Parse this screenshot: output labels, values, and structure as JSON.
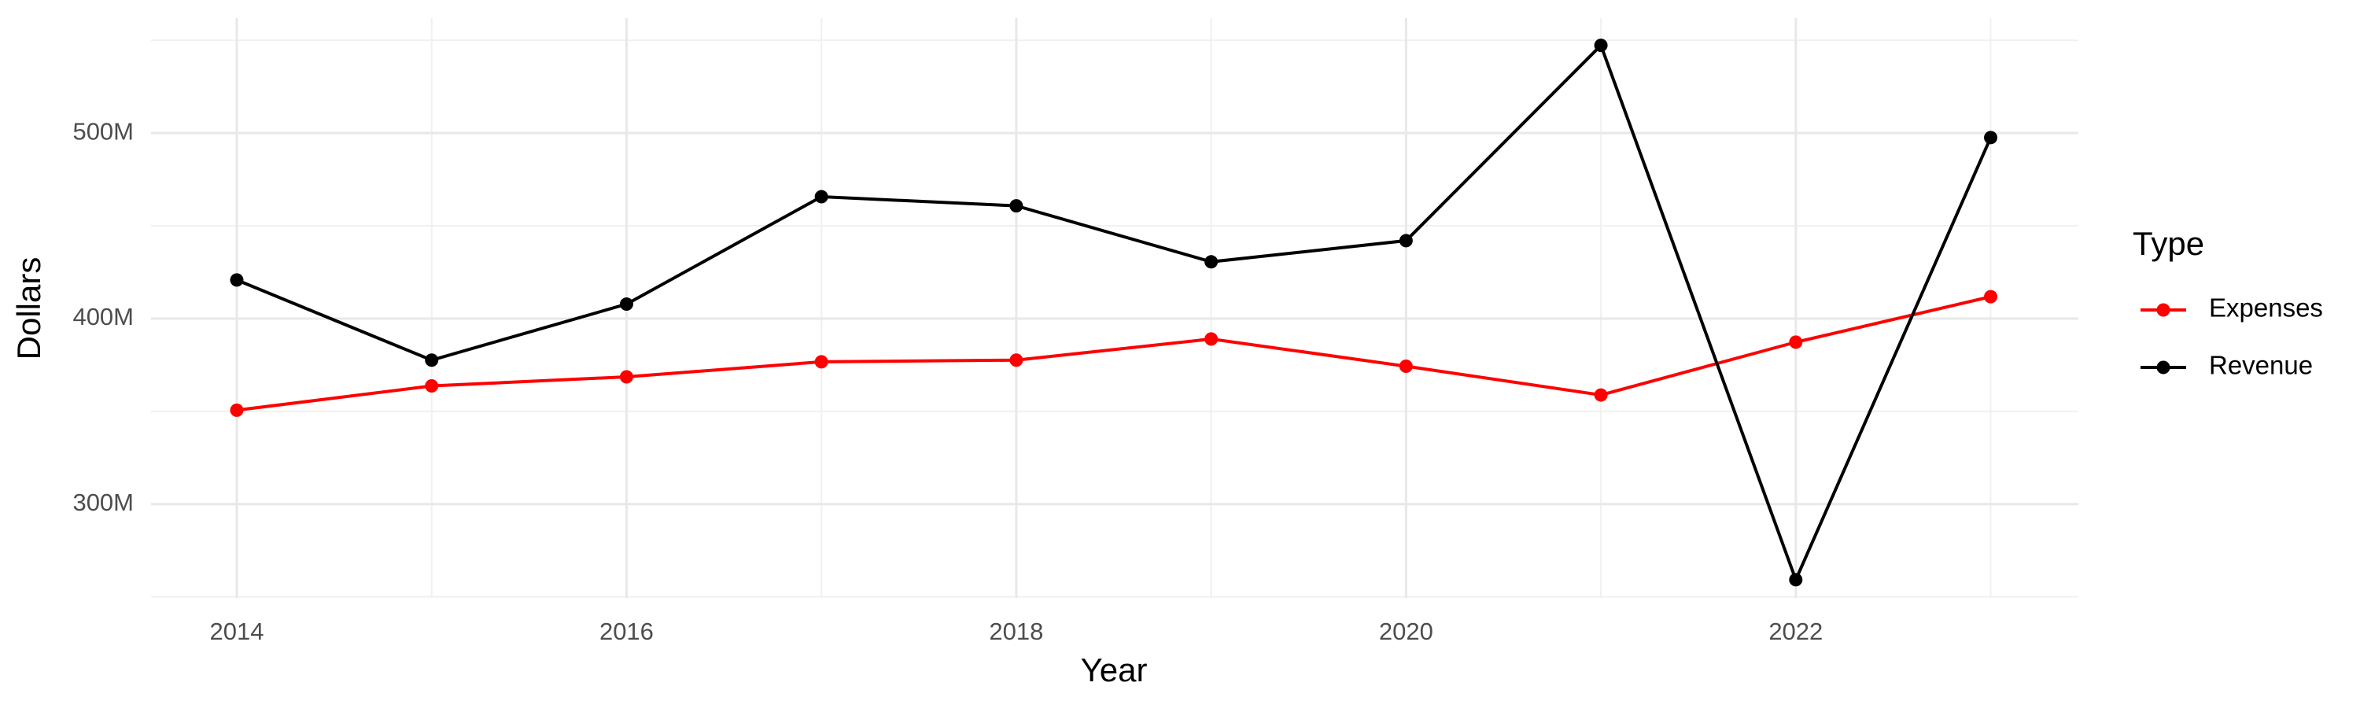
{
  "chart_data": {
    "type": "line",
    "x_label": "Year",
    "y_label": "Dollars",
    "legend_title": "Type",
    "x": [
      2014,
      2015,
      2016,
      2017,
      2018,
      2019,
      2020,
      2021,
      2022,
      2023
    ],
    "series": [
      {
        "name": "Expenses",
        "color": "#ff0000",
        "values": [
          350600000,
          363700000,
          368600000,
          376700000,
          377600000,
          389000000,
          374300000,
          358800000,
          387300000,
          411800000
        ]
      },
      {
        "name": "Revenue",
        "color": "#000000",
        "values": [
          420800000,
          377600000,
          407800000,
          465700000,
          460800000,
          430600000,
          442000000,
          547300000,
          259200000,
          497600000
        ]
      }
    ],
    "xlim": [
      2013.56,
      2023.45
    ],
    "xticks": [
      2014,
      2016,
      2018,
      2020,
      2022
    ],
    "xminor": [
      2015,
      2017,
      2019,
      2021,
      2023
    ],
    "ylim": [
      249400000,
      562000000
    ],
    "yticks": [
      {
        "value": 300000000,
        "label": "300M"
      },
      {
        "value": 400000000,
        "label": "400M"
      },
      {
        "value": 500000000,
        "label": "500M"
      }
    ],
    "yminor": [
      250000000,
      350000000,
      450000000,
      550000000
    ],
    "grid": true,
    "legend": "right"
  }
}
